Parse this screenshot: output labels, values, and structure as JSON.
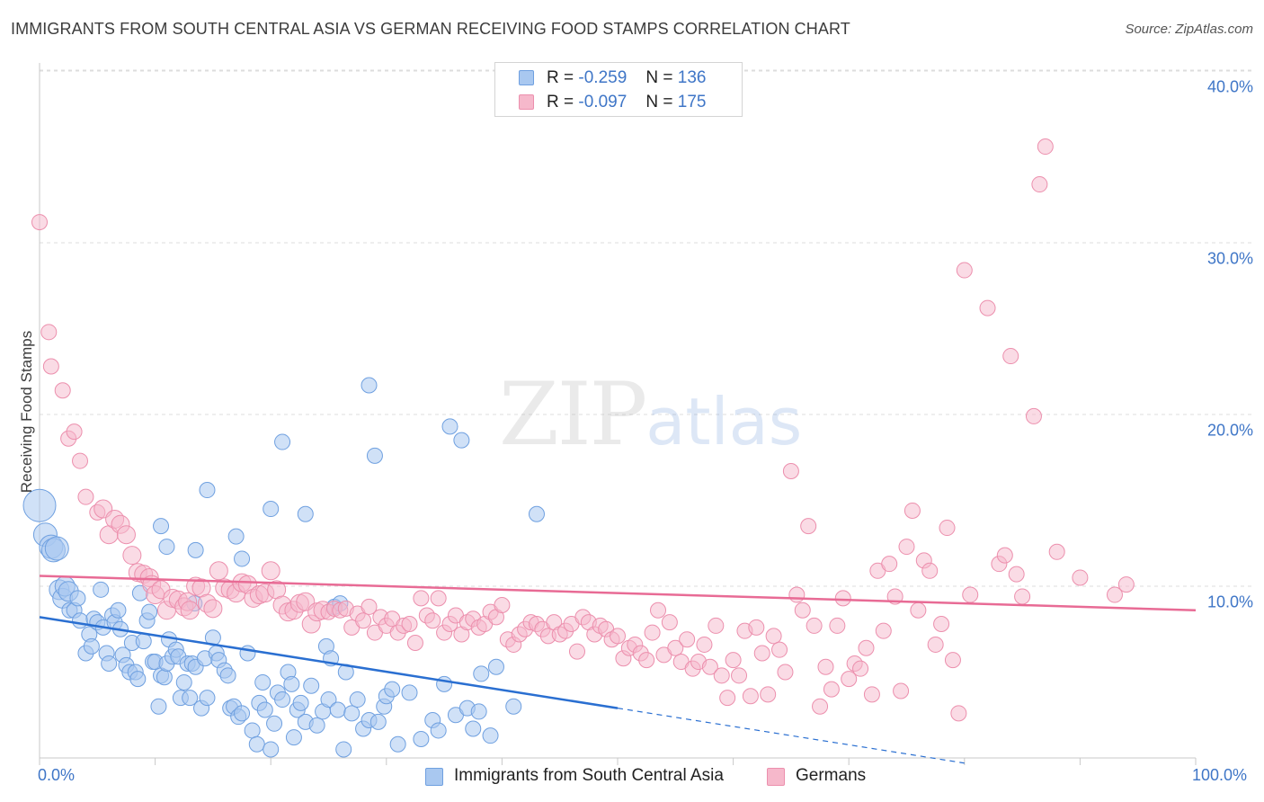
{
  "title": "IMMIGRANTS FROM SOUTH CENTRAL ASIA VS GERMAN RECEIVING FOOD STAMPS CORRELATION CHART",
  "source": "Source: ZipAtlas.com",
  "watermark": {
    "zip": "ZIP",
    "atlas": "atlas"
  },
  "legend": {
    "rows": [
      {
        "r_label": "R =",
        "r_value": "-0.259",
        "n_label": "N =",
        "n_value": "136"
      },
      {
        "r_label": "R =",
        "r_value": "-0.097",
        "n_label": "N =",
        "n_value": "175"
      }
    ]
  },
  "colors": {
    "blue_fill": "#a9c8f0",
    "blue_stroke": "#6fa0e0",
    "blue_line": "#2a6fd1",
    "pink_fill": "#f6b8cb",
    "pink_stroke": "#ec8fad",
    "pink_line": "#e86b95",
    "tick_text": "#3f76c7",
    "grid": "#dddddd"
  },
  "chart_data": {
    "type": "scatter",
    "title": "IMMIGRANTS FROM SOUTH CENTRAL ASIA VS GERMAN RECEIVING FOOD STAMPS CORRELATION CHART",
    "xlabel": "",
    "ylabel": "Receiving Food Stamps",
    "x_tick_labels": [
      "0.0%",
      "100.0%"
    ],
    "y_tick_labels": [
      "10.0%",
      "20.0%",
      "30.0%",
      "40.0%"
    ],
    "y_ticks": [
      10,
      20,
      30,
      40
    ],
    "xlim": [
      0,
      100
    ],
    "ylim": [
      0,
      42
    ],
    "grid": true,
    "legend_position": "top-center",
    "series": [
      {
        "name": "Immigrants from South Central Asia",
        "color": "#a9c8f0",
        "R": -0.259,
        "N": 136,
        "trend": {
          "x0": 0,
          "y0": 8.2,
          "x1": 50,
          "y1": 2.9,
          "dashed_to_x": 80,
          "dashed_to_y": -0.3
        },
        "points": [
          [
            0,
            14.7
          ],
          [
            0.5,
            13
          ],
          [
            1,
            12.3
          ],
          [
            1.2,
            12.1
          ],
          [
            1.5,
            12.2
          ],
          [
            1.7,
            9.8
          ],
          [
            2,
            9.3
          ],
          [
            2.2,
            10
          ],
          [
            2.5,
            9.7
          ],
          [
            2.6,
            8.6
          ],
          [
            3,
            8.6
          ],
          [
            3.3,
            9.3
          ],
          [
            3.5,
            8
          ],
          [
            4,
            6.1
          ],
          [
            4.3,
            7.2
          ],
          [
            4.5,
            6.5
          ],
          [
            4.7,
            8.1
          ],
          [
            5,
            7.9
          ],
          [
            5.3,
            9.8
          ],
          [
            5.5,
            7.6
          ],
          [
            5.8,
            6.1
          ],
          [
            6,
            5.5
          ],
          [
            6.3,
            8.3
          ],
          [
            6.5,
            7.9
          ],
          [
            6.8,
            8.6
          ],
          [
            7,
            7.5
          ],
          [
            7.2,
            6
          ],
          [
            7.5,
            5.4
          ],
          [
            7.8,
            5
          ],
          [
            8,
            6.7
          ],
          [
            8.3,
            5
          ],
          [
            8.5,
            4.6
          ],
          [
            8.7,
            9.6
          ],
          [
            9,
            6.8
          ],
          [
            9.3,
            8
          ],
          [
            9.5,
            8.5
          ],
          [
            9.8,
            5.6
          ],
          [
            10,
            5.6
          ],
          [
            10.3,
            3
          ],
          [
            10.5,
            4.8
          ],
          [
            10.8,
            4.7
          ],
          [
            11,
            5.5
          ],
          [
            11.2,
            6.9
          ],
          [
            11.5,
            5.9
          ],
          [
            11.8,
            6.3
          ],
          [
            12,
            5.9
          ],
          [
            12.2,
            3.5
          ],
          [
            12.5,
            4.4
          ],
          [
            12.8,
            5.5
          ],
          [
            13,
            3.5
          ],
          [
            13.2,
            5.5
          ],
          [
            13.5,
            5.3
          ],
          [
            14,
            2.9
          ],
          [
            14.3,
            5.8
          ],
          [
            14.5,
            3.5
          ],
          [
            15,
            7
          ],
          [
            15.3,
            6.1
          ],
          [
            15.5,
            5.7
          ],
          [
            16,
            5.1
          ],
          [
            16.3,
            4.8
          ],
          [
            16.5,
            2.9
          ],
          [
            16.8,
            3
          ],
          [
            17.2,
            2.4
          ],
          [
            17.5,
            2.6
          ],
          [
            18,
            6.1
          ],
          [
            18.4,
            1.6
          ],
          [
            18.8,
            0.8
          ],
          [
            19,
            3.2
          ],
          [
            19.3,
            4.4
          ],
          [
            19.5,
            2.8
          ],
          [
            20,
            0.5
          ],
          [
            20.3,
            2
          ],
          [
            20.6,
            3.8
          ],
          [
            21,
            3.4
          ],
          [
            21.5,
            5
          ],
          [
            21.8,
            4.3
          ],
          [
            22,
            1.2
          ],
          [
            22.3,
            2.8
          ],
          [
            22.6,
            3.2
          ],
          [
            23,
            2.1
          ],
          [
            23.5,
            4.2
          ],
          [
            24,
            1.9
          ],
          [
            24.5,
            2.7
          ],
          [
            24.8,
            6.5
          ],
          [
            25,
            3.4
          ],
          [
            25.2,
            5.8
          ],
          [
            25.5,
            8.8
          ],
          [
            25.8,
            2.8
          ],
          [
            26,
            9
          ],
          [
            26.3,
            0.5
          ],
          [
            26.5,
            5
          ],
          [
            27,
            2.6
          ],
          [
            27.5,
            3.4
          ],
          [
            28,
            1.7
          ],
          [
            28.5,
            2.2
          ],
          [
            29.3,
            2.1
          ],
          [
            29.8,
            3
          ],
          [
            30,
            3.6
          ],
          [
            30.5,
            4
          ],
          [
            31,
            0.8
          ],
          [
            32,
            3.8
          ],
          [
            33,
            1.1
          ],
          [
            34,
            2.2
          ],
          [
            34.5,
            1.6
          ],
          [
            35,
            4.3
          ],
          [
            36,
            2.5
          ],
          [
            37,
            2.9
          ],
          [
            37.5,
            1.7
          ],
          [
            38,
            2.7
          ],
          [
            38.2,
            4.9
          ],
          [
            39,
            1.3
          ],
          [
            39.5,
            5.3
          ],
          [
            41,
            3
          ],
          [
            10.5,
            13.5
          ],
          [
            11,
            12.3
          ],
          [
            13.4,
            9
          ],
          [
            13.5,
            12.1
          ],
          [
            14.5,
            15.6
          ],
          [
            17,
            12.9
          ],
          [
            17.5,
            11.6
          ],
          [
            20,
            14.5
          ],
          [
            21,
            18.4
          ],
          [
            23,
            14.2
          ],
          [
            28.5,
            21.7
          ],
          [
            29,
            17.6
          ],
          [
            35.5,
            19.3
          ],
          [
            36.5,
            18.5
          ],
          [
            43,
            14.2
          ]
        ]
      },
      {
        "name": "Germans",
        "color": "#f6b8cb",
        "R": -0.097,
        "N": 175,
        "trend": {
          "x0": 0,
          "y0": 10.6,
          "x1": 100,
          "y1": 8.6
        },
        "points": [
          [
            0,
            31.2
          ],
          [
            0.8,
            24.8
          ],
          [
            1,
            22.8
          ],
          [
            2,
            21.4
          ],
          [
            2.5,
            18.6
          ],
          [
            3,
            19
          ],
          [
            3.5,
            17.3
          ],
          [
            4,
            15.2
          ],
          [
            5,
            14.3
          ],
          [
            5.5,
            14.5
          ],
          [
            6,
            13
          ],
          [
            6.5,
            13.9
          ],
          [
            7,
            13.6
          ],
          [
            7.5,
            13
          ],
          [
            8,
            11.8
          ],
          [
            8.5,
            10.8
          ],
          [
            9,
            10.7
          ],
          [
            9.5,
            10.5
          ],
          [
            9.7,
            10.1
          ],
          [
            10,
            9.5
          ],
          [
            10.5,
            9.8
          ],
          [
            11,
            8.6
          ],
          [
            11.5,
            9.3
          ],
          [
            12,
            9.2
          ],
          [
            12.5,
            8.8
          ],
          [
            12.8,
            9.1
          ],
          [
            13,
            8.6
          ],
          [
            13.5,
            10
          ],
          [
            14,
            9.9
          ],
          [
            14.5,
            9
          ],
          [
            15,
            8.7
          ],
          [
            15.5,
            10.9
          ],
          [
            16,
            9.9
          ],
          [
            16.5,
            9.8
          ],
          [
            17,
            9.6
          ],
          [
            17.5,
            10.2
          ],
          [
            18,
            10.1
          ],
          [
            18.5,
            9.3
          ],
          [
            19,
            9.5
          ],
          [
            19.5,
            9.6
          ],
          [
            20,
            10.9
          ],
          [
            20.5,
            9.8
          ],
          [
            21,
            8.9
          ],
          [
            21.5,
            8.5
          ],
          [
            22,
            8.6
          ],
          [
            22.5,
            9
          ],
          [
            23,
            9.1
          ],
          [
            23.5,
            7.8
          ],
          [
            24,
            8.5
          ],
          [
            24.5,
            8.6
          ],
          [
            25,
            8.5
          ],
          [
            25.5,
            8.7
          ],
          [
            26,
            8.6
          ],
          [
            26.5,
            8.7
          ],
          [
            27,
            7.6
          ],
          [
            27.5,
            8.4
          ],
          [
            28,
            8
          ],
          [
            28.5,
            8.8
          ],
          [
            29,
            7.3
          ],
          [
            29.5,
            8.2
          ],
          [
            30,
            7.7
          ],
          [
            30.5,
            8.1
          ],
          [
            31,
            7.3
          ],
          [
            31.5,
            7.7
          ],
          [
            32,
            7.8
          ],
          [
            32.5,
            6.7
          ],
          [
            33,
            9.3
          ],
          [
            33.5,
            8.3
          ],
          [
            34,
            8
          ],
          [
            34.5,
            9.3
          ],
          [
            35,
            7.3
          ],
          [
            35.5,
            7.8
          ],
          [
            36,
            8.3
          ],
          [
            36.5,
            7.2
          ],
          [
            37,
            7.9
          ],
          [
            37.5,
            8.1
          ],
          [
            38,
            7.6
          ],
          [
            38.5,
            7.8
          ],
          [
            39,
            8.5
          ],
          [
            39.5,
            8.2
          ],
          [
            40,
            8.9
          ],
          [
            40.5,
            6.9
          ],
          [
            41,
            6.6
          ],
          [
            41.5,
            7.2
          ],
          [
            42,
            7.5
          ],
          [
            42.5,
            7.9
          ],
          [
            43,
            7.8
          ],
          [
            43.5,
            7.5
          ],
          [
            44,
            7.1
          ],
          [
            44.5,
            7.9
          ],
          [
            45,
            7.2
          ],
          [
            45.5,
            7.4
          ],
          [
            46,
            7.8
          ],
          [
            46.5,
            6.2
          ],
          [
            47,
            8.2
          ],
          [
            47.5,
            7.9
          ],
          [
            48,
            7.2
          ],
          [
            48.5,
            7.7
          ],
          [
            49,
            7.5
          ],
          [
            49.5,
            6.9
          ],
          [
            50,
            7.1
          ],
          [
            50.5,
            5.8
          ],
          [
            51,
            6.4
          ],
          [
            51.5,
            6.6
          ],
          [
            52,
            6.1
          ],
          [
            52.5,
            5.7
          ],
          [
            53,
            7.3
          ],
          [
            53.5,
            8.6
          ],
          [
            54,
            6
          ],
          [
            54.5,
            7.9
          ],
          [
            55,
            6.4
          ],
          [
            55.5,
            5.6
          ],
          [
            56,
            6.9
          ],
          [
            56.5,
            5.2
          ],
          [
            57,
            5.6
          ],
          [
            57.5,
            6.6
          ],
          [
            58,
            5.3
          ],
          [
            58.5,
            7.7
          ],
          [
            59,
            4.8
          ],
          [
            59.5,
            3.5
          ],
          [
            60,
            5.7
          ],
          [
            60.5,
            4.8
          ],
          [
            61,
            7.4
          ],
          [
            61.5,
            3.6
          ],
          [
            62,
            7.6
          ],
          [
            62.5,
            6.1
          ],
          [
            63,
            3.7
          ],
          [
            63.5,
            7.1
          ],
          [
            64,
            6.3
          ],
          [
            64.5,
            5
          ],
          [
            65,
            16.7
          ],
          [
            65.5,
            9.5
          ],
          [
            66,
            8.6
          ],
          [
            66.5,
            13.5
          ],
          [
            67,
            7.7
          ],
          [
            67.5,
            3
          ],
          [
            68,
            5.3
          ],
          [
            68.5,
            4
          ],
          [
            69,
            7.7
          ],
          [
            69.5,
            9.3
          ],
          [
            70,
            4.6
          ],
          [
            70.5,
            5.5
          ],
          [
            71,
            5.2
          ],
          [
            71.5,
            6.4
          ],
          [
            72,
            3.7
          ],
          [
            72.5,
            10.9
          ],
          [
            73,
            7.4
          ],
          [
            73.5,
            11.3
          ],
          [
            74,
            9.4
          ],
          [
            74.5,
            3.9
          ],
          [
            75,
            12.3
          ],
          [
            75.5,
            14.4
          ],
          [
            76,
            8.6
          ],
          [
            76.5,
            11.5
          ],
          [
            77,
            10.9
          ],
          [
            77.5,
            6.6
          ],
          [
            78,
            7.8
          ],
          [
            78.5,
            13.4
          ],
          [
            79,
            5.7
          ],
          [
            79.5,
            2.6
          ],
          [
            80,
            28.4
          ],
          [
            80.5,
            9.5
          ],
          [
            82,
            26.2
          ],
          [
            83,
            11.3
          ],
          [
            83.5,
            11.8
          ],
          [
            84,
            23.4
          ],
          [
            84.5,
            10.7
          ],
          [
            85,
            9.4
          ],
          [
            86,
            19.9
          ],
          [
            86.5,
            33.4
          ],
          [
            87,
            35.6
          ],
          [
            88,
            12
          ],
          [
            90,
            10.5
          ],
          [
            93,
            9.5
          ],
          [
            94,
            10.1
          ]
        ]
      }
    ]
  },
  "bottom_legend": [
    {
      "label": "Immigrants from South Central Asia"
    },
    {
      "label": "Germans"
    }
  ]
}
